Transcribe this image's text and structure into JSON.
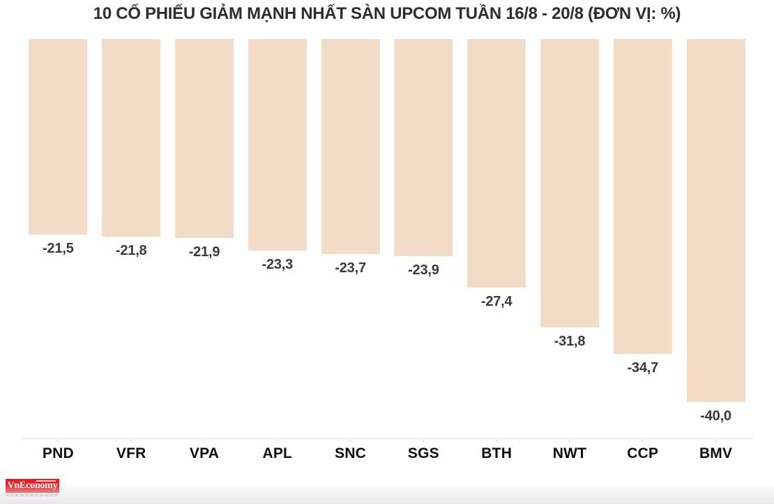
{
  "chart_data": {
    "type": "bar",
    "title": "10 CỔ PHIẾU GIẢM MẠNH NHẤT SÀN UPCOM TUẦN 16/8 - 20/8 (ĐƠN VỊ: %)",
    "categories": [
      "PND",
      "VFR",
      "VPA",
      "APL",
      "SNC",
      "SGS",
      "BTH",
      "NWT",
      "CCP",
      "BMV"
    ],
    "values": [
      -21.5,
      -21.8,
      -21.9,
      -23.3,
      -23.7,
      -23.9,
      -27.4,
      -31.8,
      -34.7,
      -40.0
    ],
    "value_labels": [
      "-21,5",
      "-21,8",
      "-21,9",
      "-23,3",
      "-23,7",
      "-23,9",
      "-27,4",
      "-31,8",
      "-34,7",
      "-40,0"
    ],
    "unit": "%",
    "xlabel": "",
    "ylabel": "",
    "ylim": [
      -40,
      0
    ],
    "grid": false,
    "legend": false,
    "orientation": "bars-hang-from-top",
    "bar_color": "#F2DCC8",
    "value_label_color": "#3a3a3a",
    "category_label_color": "#0c0c0c",
    "title_color": "#2d2d2d",
    "axis_line_color": "#e1e1e1",
    "background_color": "#ffffff"
  },
  "branding": {
    "logo_text": "VnEconomy",
    "logo_bg": "#EC1C24",
    "logo_text_color": "#ffffff"
  }
}
